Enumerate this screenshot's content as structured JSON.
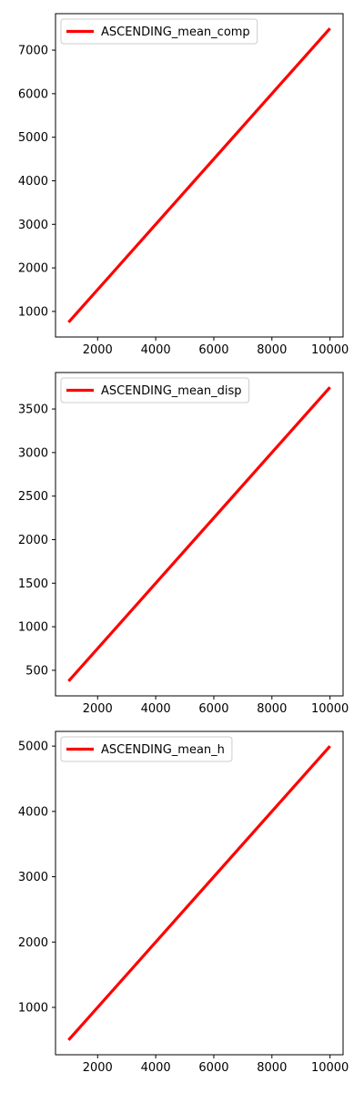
{
  "chart_data": [
    {
      "type": "line",
      "x": [
        1000,
        10000
      ],
      "series": [
        {
          "name": "ASCENDING_mean_comp",
          "values": [
            750,
            7500
          ],
          "color": "#ff0000"
        }
      ],
      "xlim": [
        550,
        10450
      ],
      "ylim": [
        412.5,
        7837.5
      ],
      "xticks": [
        2000,
        4000,
        6000,
        8000,
        10000
      ],
      "yticks": [
        1000,
        2000,
        3000,
        4000,
        5000,
        6000,
        7000
      ],
      "legend": "upper-left",
      "grid": false
    },
    {
      "type": "line",
      "x": [
        1000,
        10000
      ],
      "series": [
        {
          "name": "ASCENDING_mean_disp",
          "values": [
            375,
            3750
          ],
          "color": "#ff0000"
        }
      ],
      "xlim": [
        550,
        10450
      ],
      "ylim": [
        206.25,
        3918.75
      ],
      "xticks": [
        2000,
        4000,
        6000,
        8000,
        10000
      ],
      "yticks": [
        500,
        1000,
        1500,
        2000,
        2500,
        3000,
        3500
      ],
      "legend": "upper-left",
      "grid": false
    },
    {
      "type": "line",
      "x": [
        1000,
        10000
      ],
      "series": [
        {
          "name": "ASCENDING_mean_h",
          "values": [
            500,
            5000
          ],
          "color": "#ff0000"
        }
      ],
      "xlim": [
        550,
        10450
      ],
      "ylim": [
        275,
        5225
      ],
      "xticks": [
        2000,
        4000,
        6000,
        8000,
        10000
      ],
      "yticks": [
        1000,
        2000,
        3000,
        4000,
        5000
      ],
      "legend": "upper-left",
      "grid": false
    }
  ]
}
